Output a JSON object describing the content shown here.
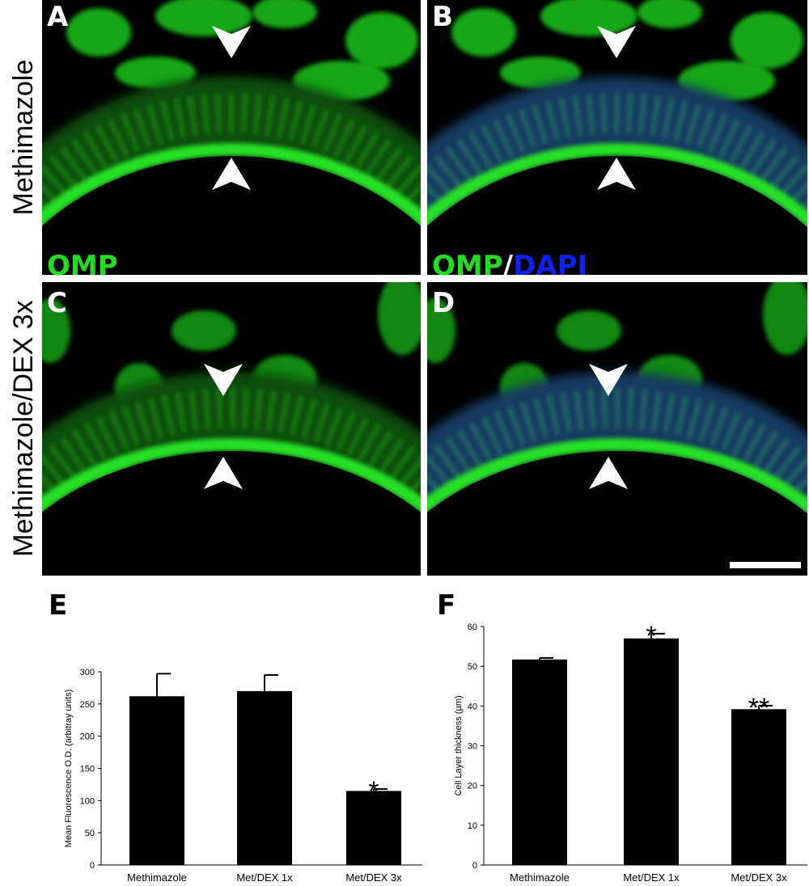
{
  "panels": [
    {
      "letter": "A",
      "stain": [
        "OMP"
      ]
    },
    {
      "letter": "B",
      "stain": [
        "OMP",
        "/",
        "DAPI"
      ]
    },
    {
      "letter": "C"
    },
    {
      "letter": "D"
    }
  ],
  "row_labels": [
    "Methimazole",
    "Methimazole/DEX 3x"
  ],
  "chart_data": [
    {
      "type": "bar",
      "panel": "E",
      "y_label": "Mean Fluorescence O.D. (arbitray units)",
      "categories": [
        "Methimazole",
        "Met/DEX 1x",
        "Met/DEX 3x"
      ],
      "values": [
        262,
        270,
        115
      ],
      "errors": [
        35,
        25,
        3
      ],
      "color": "#000000",
      "value_annotations": [
        null,
        null,
        "*"
      ],
      "ylim": [
        0,
        300
      ],
      "yticks": [
        0,
        50,
        100,
        150,
        200,
        250,
        300
      ]
    },
    {
      "type": "bar",
      "panel": "F",
      "y_label": "Cell Layer thickness (µm)",
      "categories": [
        "Methimazole",
        "Met/DEX 1x",
        "Met/DEX 3x"
      ],
      "values": [
        51.7,
        57,
        39.2
      ],
      "errors": [
        0.4,
        1.2,
        0.9
      ],
      "color": "#000000",
      "value_annotations": [
        null,
        "*",
        "**"
      ],
      "ylim": [
        0,
        60
      ],
      "yticks": [
        0,
        10,
        20,
        30,
        40,
        50,
        60
      ]
    }
  ]
}
